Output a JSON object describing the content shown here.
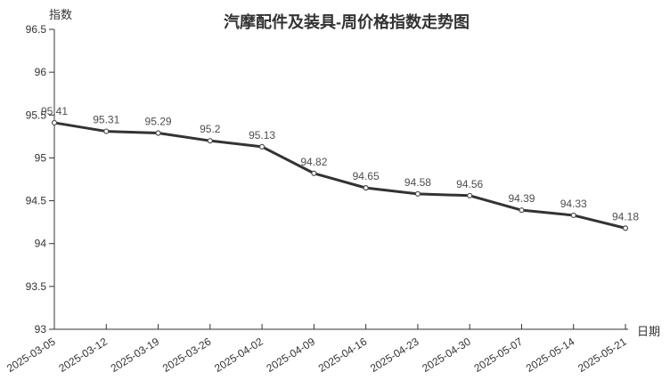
{
  "page": {
    "background": "#ffffff"
  },
  "chart_data": {
    "type": "line",
    "title": "汽摩配件及装具-周价格指数走势图",
    "xlabel": "日期",
    "ylabel": "指数",
    "categories": [
      "2025-03-05",
      "2025-03-12",
      "2025-03-19",
      "2025-03-26",
      "2025-04-02",
      "2025-04-09",
      "2025-04-16",
      "2025-04-23",
      "2025-04-30",
      "2025-05-07",
      "2025-05-14",
      "2025-05-21"
    ],
    "values": [
      95.41,
      95.31,
      95.29,
      95.2,
      95.13,
      94.82,
      94.65,
      94.58,
      94.56,
      94.39,
      94.33,
      94.18
    ],
    "data_labels": [
      "95.41",
      "95.31",
      "95.29",
      "95.2",
      "95.13",
      "94.82",
      "94.65",
      "94.58",
      "94.56",
      "94.39",
      "94.33",
      "94.18"
    ],
    "ylim": [
      93,
      96.5
    ],
    "ytick_step": 0.5,
    "ytick_labels": [
      "93",
      "93.5",
      "94",
      "94.5",
      "95",
      "95.5",
      "96",
      "96.5"
    ],
    "grid": false,
    "legend": "none",
    "x_label_rotation_deg": 32,
    "colors": {
      "line": "#333333",
      "axis": "#333333",
      "tick_label": "#333333",
      "data_label": "#4d4d4d",
      "marker_fill": "#ffffff",
      "marker_stroke": "#4d4d4d",
      "title": "#333333",
      "background": "#ffffff"
    }
  }
}
